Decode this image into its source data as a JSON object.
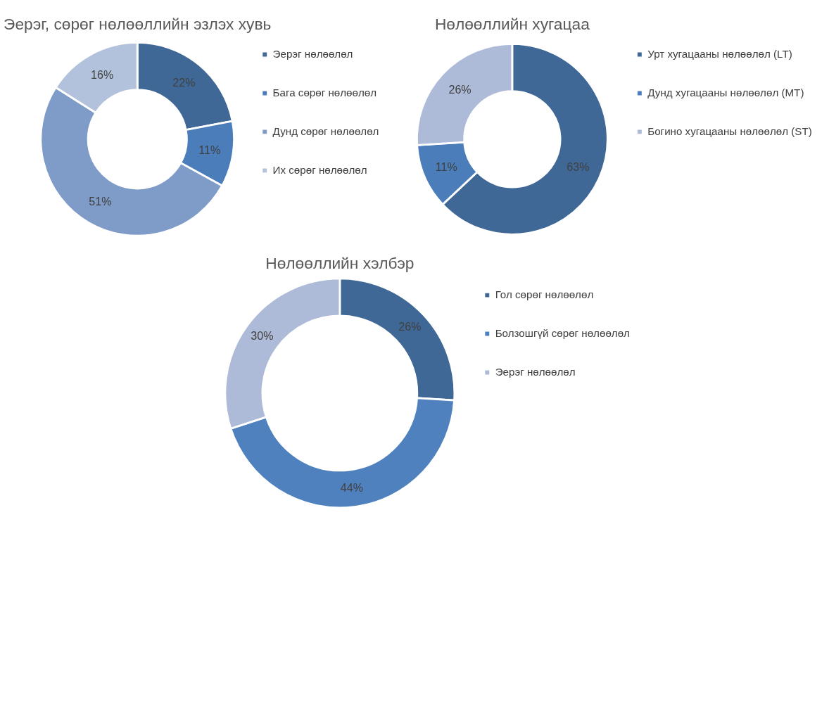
{
  "chart_data": [
    {
      "type": "donut",
      "title": "Эерэг, сөрөг нөлөөллийн эзлэх хувь",
      "categories": [
        "Эерэг нөлөөлөл",
        "Бага сөрөг нөлөөлөл",
        "Дунд сөрөг нөлөөлөл",
        "Их сөрөг нөлөөлөл"
      ],
      "values": [
        22,
        11,
        51,
        16
      ],
      "colors": [
        "#3f6897",
        "#4a7dba",
        "#7f9cc9",
        "#b2c1dc"
      ],
      "value_labels": [
        "22%",
        "11%",
        "51%",
        "16%"
      ],
      "legend": "right"
    },
    {
      "type": "donut",
      "title": "Нөлөөллийн хугацаа",
      "categories": [
        "Урт хугацааны нөлөөлөл (LT)",
        "Дунд хугацааны нөлөөлөл  (MT)",
        "Богино хугацааны нөлөөлөл (ST)"
      ],
      "values": [
        63,
        11,
        26
      ],
      "colors": [
        "#3f6897",
        "#4a7dba",
        "#aebbd8"
      ],
      "value_labels": [
        "63%",
        "11%",
        "26%"
      ],
      "legend": "right"
    },
    {
      "type": "donut",
      "title": "Нөлөөллийн хэлбэр",
      "categories": [
        "Гол сөрөг нөлөөлөл",
        "Болзошгүй сөрөг нөлөөлөл",
        "Эерэг нөлөөлөл"
      ],
      "values": [
        26,
        44,
        30
      ],
      "colors": [
        "#3f6897",
        "#4e81bd",
        "#aebbd8"
      ],
      "value_labels": [
        "26%",
        "44%",
        "30%"
      ],
      "legend": "right"
    }
  ]
}
